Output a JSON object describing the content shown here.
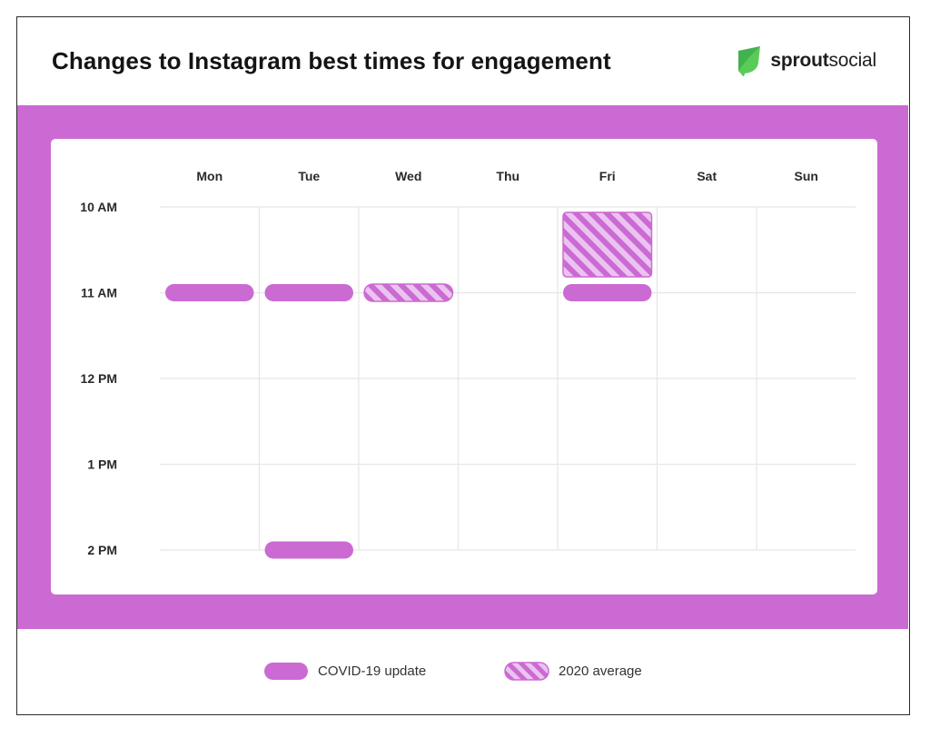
{
  "header": {
    "title": "Changes to Instagram best times for engagement",
    "logo_text_bold": "sprout",
    "logo_text_light": "social"
  },
  "colors": {
    "accent": "#cb6ad3",
    "pattern_light": "#ecc3f0",
    "grid": "#e6e6e6",
    "logo_green": "#59cb59",
    "logo_green_dark": "#2f9e45"
  },
  "chart_data": {
    "type": "heatmap",
    "title": "Changes to Instagram best times for engagement",
    "columns": [
      "Mon",
      "Tue",
      "Wed",
      "Thu",
      "Fri",
      "Sat",
      "Sun"
    ],
    "rows": [
      "10 AM",
      "11 AM",
      "12 PM",
      "1 PM",
      "2 PM"
    ],
    "series": [
      {
        "name": "COVID-19 update",
        "style": "solid",
        "slots": [
          {
            "day": "Mon",
            "start": "11 AM",
            "end": "11 AM"
          },
          {
            "day": "Tue",
            "start": "11 AM",
            "end": "11 AM"
          },
          {
            "day": "Tue",
            "start": "2 PM",
            "end": "2 PM"
          },
          {
            "day": "Fri",
            "start": "11 AM",
            "end": "11 AM"
          }
        ]
      },
      {
        "name": "2020 average",
        "style": "hatched",
        "slots": [
          {
            "day": "Wed",
            "start": "11 AM",
            "end": "11 AM"
          },
          {
            "day": "Fri",
            "start": "10 AM",
            "end": "11 AM"
          }
        ]
      }
    ],
    "grid": true,
    "legend_position": "bottom"
  }
}
